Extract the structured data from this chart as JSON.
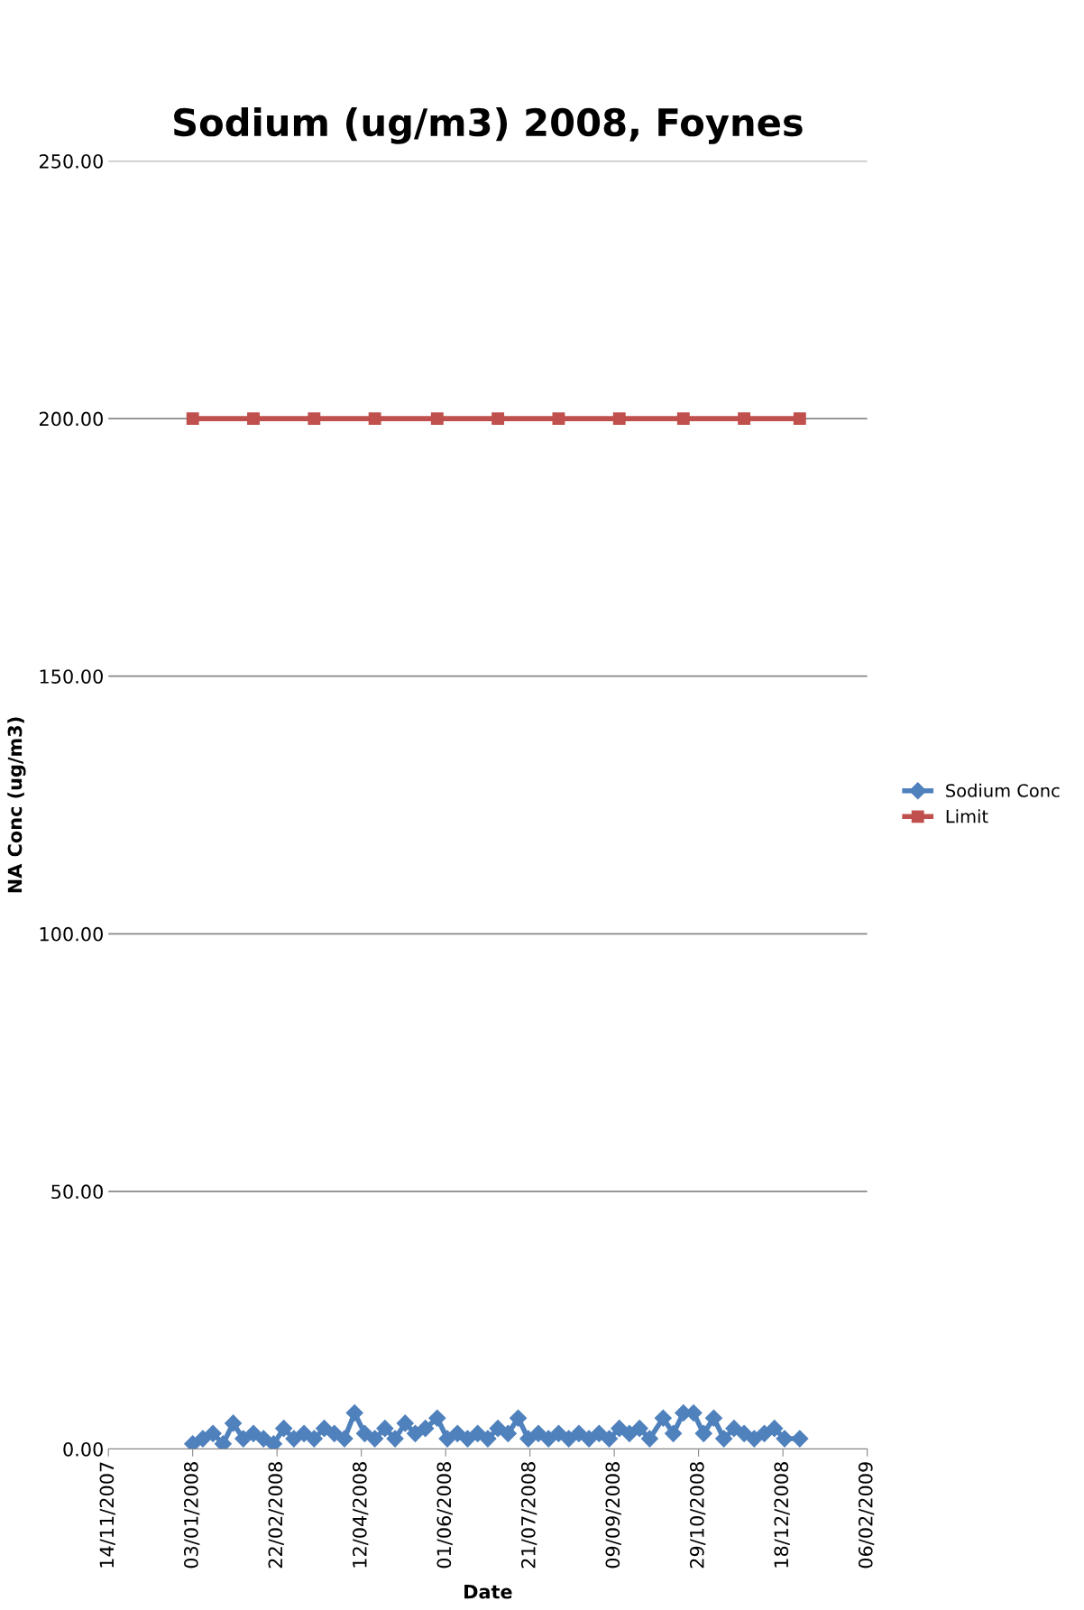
{
  "chart_data": {
    "type": "line",
    "title": "Sodium (ug/m3) 2008, Foynes",
    "xlabel": "Date",
    "ylabel": "NA Conc (ug/m3)",
    "x": [
      "2008-01-03",
      "2008-01-09",
      "2008-01-15",
      "2008-01-21",
      "2008-01-27",
      "2008-02-02",
      "2008-02-08",
      "2008-02-14",
      "2008-02-20",
      "2008-02-26",
      "2008-03-03",
      "2008-03-09",
      "2008-03-15",
      "2008-03-21",
      "2008-03-27",
      "2008-04-02",
      "2008-04-08",
      "2008-04-14",
      "2008-04-20",
      "2008-04-26",
      "2008-05-02",
      "2008-05-08",
      "2008-05-14",
      "2008-05-20",
      "2008-05-27",
      "2008-06-02",
      "2008-06-08",
      "2008-06-14",
      "2008-06-20",
      "2008-06-26",
      "2008-07-02",
      "2008-07-08",
      "2008-07-14",
      "2008-07-20",
      "2008-07-26",
      "2008-08-01",
      "2008-08-07",
      "2008-08-13",
      "2008-08-19",
      "2008-08-25",
      "2008-08-31",
      "2008-09-06",
      "2008-09-12",
      "2008-09-18",
      "2008-09-24",
      "2008-09-30",
      "2008-10-08",
      "2008-10-14",
      "2008-10-20",
      "2008-10-26",
      "2008-11-01",
      "2008-11-07",
      "2008-11-13",
      "2008-11-19",
      "2008-11-25",
      "2008-12-01",
      "2008-12-07",
      "2008-12-13",
      "2008-12-19",
      "2008-12-28"
    ],
    "series": [
      {
        "name": "Sodium Conc",
        "color": "#4f81bd",
        "marker": "diamond",
        "values": [
          1,
          2,
          3,
          1,
          5,
          2,
          3,
          2,
          1,
          4,
          2,
          3,
          2,
          4,
          3,
          2,
          7,
          3,
          2,
          4,
          2,
          5,
          3,
          4,
          6,
          2,
          3,
          2,
          3,
          2,
          4,
          3,
          6,
          2,
          3,
          2,
          3,
          2,
          3,
          2,
          3,
          2,
          4,
          3,
          4,
          2,
          6,
          3,
          7,
          7,
          3,
          6,
          2,
          4,
          3,
          2,
          3,
          4,
          2,
          2
        ]
      },
      {
        "name": "Limit",
        "color": "#c0504d",
        "marker": "square",
        "x": [
          "2008-01-03",
          "2008-02-08",
          "2008-03-15",
          "2008-04-20",
          "2008-05-27",
          "2008-07-02",
          "2008-08-07",
          "2008-09-12",
          "2008-10-20",
          "2008-11-25",
          "2008-12-28"
        ],
        "values": [
          200,
          200,
          200,
          200,
          200,
          200,
          200,
          200,
          200,
          200,
          200
        ]
      }
    ],
    "xlim": [
      "2007-11-14",
      "2009-02-06"
    ],
    "xticks": [
      {
        "value": "2007-11-14",
        "label": "14/11/2007"
      },
      {
        "value": "2008-01-03",
        "label": "03/01/2008"
      },
      {
        "value": "2008-02-22",
        "label": "22/02/2008"
      },
      {
        "value": "2008-04-12",
        "label": "12/04/2008"
      },
      {
        "value": "2008-06-01",
        "label": "01/06/2008"
      },
      {
        "value": "2008-07-21",
        "label": "21/07/2008"
      },
      {
        "value": "2008-09-09",
        "label": "09/09/2008"
      },
      {
        "value": "2008-10-29",
        "label": "29/10/2008"
      },
      {
        "value": "2008-12-18",
        "label": "18/12/2008"
      },
      {
        "value": "2009-02-06",
        "label": "06/02/2009"
      }
    ],
    "ylim": [
      0,
      250
    ],
    "yticks": [
      {
        "value": 0,
        "label": "0.00"
      },
      {
        "value": 50,
        "label": "50.00"
      },
      {
        "value": 100,
        "label": "100.00"
      },
      {
        "value": 150,
        "label": "150.00"
      },
      {
        "value": 200,
        "label": "200.00"
      },
      {
        "value": 250,
        "label": "250.00"
      }
    ],
    "grid": "y",
    "legend": "right",
    "line_style": "solid"
  }
}
